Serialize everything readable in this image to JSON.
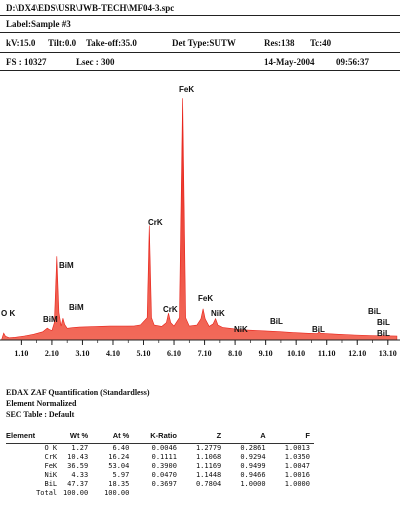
{
  "header": {
    "filepath": "D:\\DX4\\EDS\\USR\\JWB-TECH\\MF04-3.spc",
    "label": "Label:Sample #3",
    "kv": "kV:15.0",
    "tilt": "Tilt:0.0",
    "takeoff": "Take-off:35.0",
    "det_type": "Det Type:SUTW",
    "res": "Res:138",
    "tc": "Tc:40",
    "fs": "FS : 10327",
    "lsec": "Lsec : 300",
    "date": "14-May-2004",
    "time": "09:56:37"
  },
  "chart_data": {
    "type": "line",
    "title": "",
    "xlabel": "",
    "ylabel": "",
    "xlim": [
      0.4,
      13.5
    ],
    "ylim": [
      0,
      10327
    ],
    "x_tick_labels": [
      "1.10",
      "2.10",
      "3.10",
      "4.10",
      "5.10",
      "6.10",
      "7.10",
      "8.10",
      "9.10",
      "10.10",
      "11.10",
      "12.10",
      "13.10"
    ],
    "x_ticks": [
      1.1,
      2.1,
      3.1,
      4.1,
      5.1,
      6.1,
      7.1,
      8.1,
      9.1,
      10.1,
      11.1,
      12.1,
      13.1
    ],
    "series": [
      {
        "points": [
          [
            0.45,
            0
          ],
          [
            0.52,
            280
          ],
          [
            0.58,
            150
          ],
          [
            0.7,
            90
          ],
          [
            0.9,
            110
          ],
          [
            1.2,
            160
          ],
          [
            1.5,
            230
          ],
          [
            1.8,
            330
          ],
          [
            1.95,
            480
          ],
          [
            2.0,
            430
          ],
          [
            2.1,
            380
          ],
          [
            2.18,
            700
          ],
          [
            2.26,
            3380
          ],
          [
            2.33,
            1100
          ],
          [
            2.4,
            560
          ],
          [
            2.46,
            880
          ],
          [
            2.52,
            620
          ],
          [
            2.6,
            470
          ],
          [
            2.8,
            500
          ],
          [
            3.0,
            520
          ],
          [
            3.5,
            540
          ],
          [
            4.0,
            560
          ],
          [
            4.5,
            560
          ],
          [
            4.8,
            570
          ],
          [
            5.0,
            610
          ],
          [
            5.22,
            900
          ],
          [
            5.29,
            4620
          ],
          [
            5.36,
            900
          ],
          [
            5.45,
            600
          ],
          [
            5.7,
            550
          ],
          [
            5.85,
            700
          ],
          [
            5.92,
            1080
          ],
          [
            5.99,
            700
          ],
          [
            6.1,
            560
          ],
          [
            6.28,
            900
          ],
          [
            6.38,
            9750
          ],
          [
            6.48,
            900
          ],
          [
            6.6,
            560
          ],
          [
            6.85,
            600
          ],
          [
            6.98,
            850
          ],
          [
            7.05,
            1260
          ],
          [
            7.12,
            850
          ],
          [
            7.25,
            550
          ],
          [
            7.38,
            650
          ],
          [
            7.46,
            860
          ],
          [
            7.54,
            600
          ],
          [
            7.7,
            500
          ],
          [
            8.0,
            460
          ],
          [
            8.2,
            420
          ],
          [
            8.5,
            400
          ],
          [
            9.0,
            370
          ],
          [
            9.5,
            340
          ],
          [
            10.0,
            300
          ],
          [
            10.5,
            270
          ],
          [
            10.8,
            260
          ],
          [
            10.85,
            330
          ],
          [
            10.9,
            270
          ],
          [
            11.5,
            230
          ],
          [
            12.0,
            200
          ],
          [
            12.5,
            180
          ],
          [
            13.0,
            170
          ],
          [
            13.4,
            160
          ]
        ]
      }
    ],
    "annotations": [
      {
        "text": "O K",
        "x": 0.52
      },
      {
        "text": "BiM",
        "x": 2.26
      },
      {
        "text": "BiM",
        "x": 1.95
      },
      {
        "text": "BiM",
        "x": 2.52
      },
      {
        "text": "CrK",
        "x": 5.41
      },
      {
        "text": "CrK",
        "x": 5.95
      },
      {
        "text": "FeK",
        "x": 6.4
      },
      {
        "text": "FeK",
        "x": 7.06
      },
      {
        "text": "NiK",
        "x": 7.48
      },
      {
        "text": "NiK",
        "x": 8.26
      },
      {
        "text": "BiL",
        "x": 9.42
      },
      {
        "text": "BiL",
        "x": 10.84
      },
      {
        "text": "BiL",
        "x": 13.02
      },
      {
        "text": "BiL",
        "x": 13.08
      },
      {
        "text": "BiL",
        "x": 13.1
      }
    ]
  },
  "quant": {
    "title": "EDAX ZAF Quantification (Standardless)",
    "subtitle": "Element Normalized",
    "sec_table": "SEC Table : Default",
    "columns": [
      "Element",
      "Wt %",
      "At %",
      "K-Ratio",
      "Z",
      "A",
      "F"
    ],
    "rows": [
      [
        "O K",
        "1.27",
        "6.40",
        "0.0046",
        "1.2779",
        "0.2861",
        "1.0013"
      ],
      [
        "CrK",
        "10.43",
        "16.24",
        "0.1111",
        "1.1068",
        "0.9294",
        "1.0350"
      ],
      [
        "FeK",
        "36.59",
        "53.04",
        "0.3900",
        "1.1169",
        "0.9499",
        "1.0047"
      ],
      [
        "NiK",
        "4.33",
        "5.97",
        "0.0470",
        "1.1448",
        "0.9466",
        "1.0016"
      ],
      [
        "BiL",
        "47.37",
        "18.35",
        "0.3697",
        "0.7804",
        "1.0000",
        "1.0000"
      ],
      [
        "Total",
        "100.00",
        "100.00",
        "",
        "",
        "",
        ""
      ]
    ]
  },
  "colors": {
    "spectrum_fill": "#e8231a",
    "spectrum_fill_light": "#f26a5a",
    "text": "#111111"
  }
}
